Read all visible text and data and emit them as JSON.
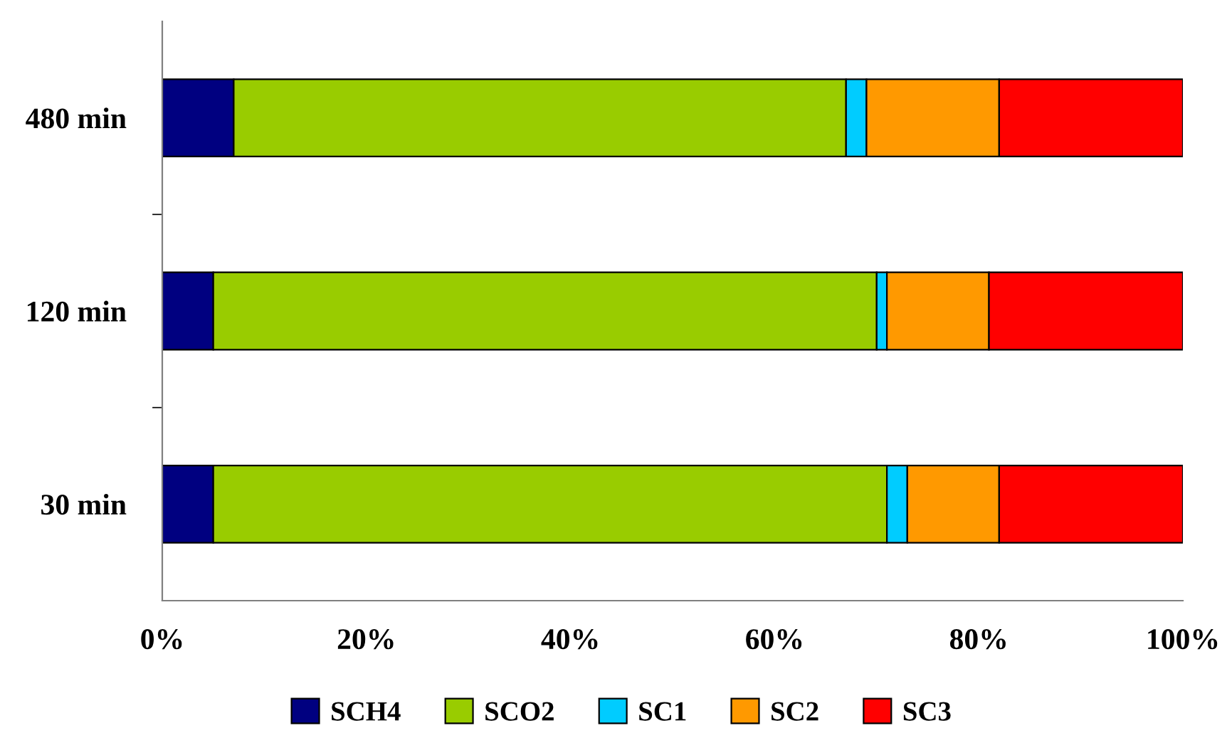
{
  "chart_data": {
    "type": "bar",
    "orientation": "horizontal",
    "stacked": true,
    "categories": [
      "480 min",
      "120 min",
      "30 min"
    ],
    "series": [
      {
        "name": "SCH4",
        "color": "#000080",
        "values": [
          7,
          5,
          5
        ]
      },
      {
        "name": "SCO2",
        "color": "#99cc00",
        "values": [
          60,
          65,
          66
        ]
      },
      {
        "name": "SC1",
        "color": "#00ccff",
        "values": [
          2,
          1,
          2
        ]
      },
      {
        "name": "SC2",
        "color": "#ff9900",
        "values": [
          13,
          10,
          9
        ]
      },
      {
        "name": "SC3",
        "color": "#ff0000",
        "values": [
          18,
          19,
          18
        ]
      }
    ],
    "xlim": [
      0,
      100
    ],
    "xticks": [
      {
        "value": 0,
        "label": "0%"
      },
      {
        "value": 20,
        "label": "20%"
      },
      {
        "value": 40,
        "label": "40%"
      },
      {
        "value": 60,
        "label": "60%"
      },
      {
        "value": 80,
        "label": "80%"
      },
      {
        "value": 100,
        "label": "100%"
      }
    ],
    "grid": false,
    "legend": "bottom"
  }
}
